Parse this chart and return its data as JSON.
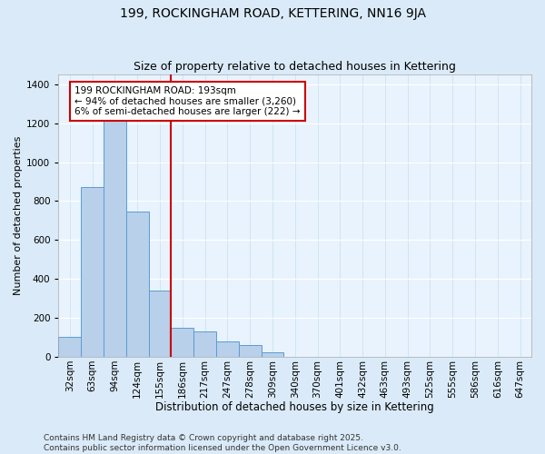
{
  "title1": "199, ROCKINGHAM ROAD, KETTERING, NN16 9JA",
  "title2": "Size of property relative to detached houses in Kettering",
  "xlabel": "Distribution of detached houses by size in Kettering",
  "ylabel": "Number of detached properties",
  "categories": [
    "32sqm",
    "63sqm",
    "94sqm",
    "124sqm",
    "155sqm",
    "186sqm",
    "217sqm",
    "247sqm",
    "278sqm",
    "309sqm",
    "340sqm",
    "370sqm",
    "401sqm",
    "432sqm",
    "463sqm",
    "493sqm",
    "525sqm",
    "555sqm",
    "586sqm",
    "616sqm",
    "647sqm"
  ],
  "values": [
    100,
    870,
    1230,
    745,
    340,
    150,
    130,
    80,
    60,
    25,
    0,
    0,
    0,
    0,
    0,
    0,
    0,
    0,
    0,
    0,
    0
  ],
  "bar_color": "#b8d0ea",
  "bar_edge_color": "#5b9bd5",
  "vline_x_index": 5,
  "vline_color": "#cc0000",
  "annotation_text": "199 ROCKINGHAM ROAD: 193sqm\n← 94% of detached houses are smaller (3,260)\n6% of semi-detached houses are larger (222) →",
  "annotation_box_color": "#ffffff",
  "annotation_box_edge_color": "#cc0000",
  "ylim": [
    0,
    1450
  ],
  "yticks": [
    0,
    200,
    400,
    600,
    800,
    1000,
    1200,
    1400
  ],
  "bg_color": "#daeaf8",
  "plot_bg_color": "#e8f3fd",
  "footer_text": "Contains HM Land Registry data © Crown copyright and database right 2025.\nContains public sector information licensed under the Open Government Licence v3.0.",
  "title1_fontsize": 10,
  "title2_fontsize": 9,
  "xlabel_fontsize": 8.5,
  "ylabel_fontsize": 8,
  "tick_fontsize": 7.5,
  "annotation_fontsize": 7.5,
  "footer_fontsize": 6.5
}
